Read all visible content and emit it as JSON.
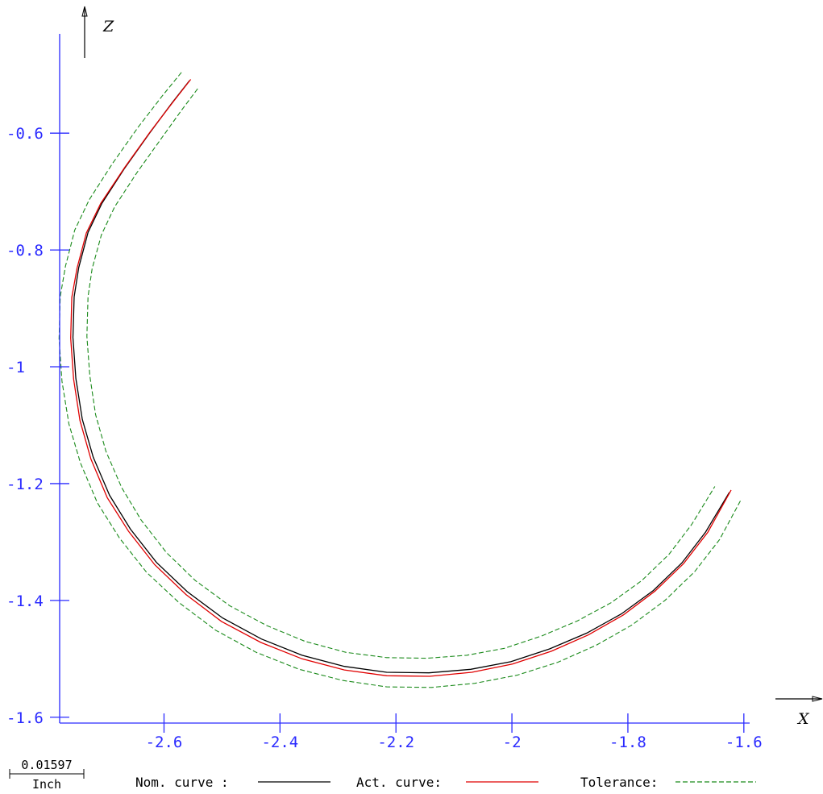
{
  "chart_data": {
    "type": "line",
    "xlabel": "X",
    "ylabel": "Z",
    "xlim": [
      -2.78,
      -1.59
    ],
    "ylim": [
      -1.61,
      -0.43
    ],
    "x_ticks": [
      -2.6,
      -2.4,
      -2.2,
      -2.0,
      -1.8,
      -1.6
    ],
    "x_tick_labels": [
      "-2.6",
      "-2.4",
      "-2.2",
      "-2",
      "-1.8",
      "-1.6"
    ],
    "y_ticks": [
      -0.6,
      -0.8,
      -1.0,
      -1.2,
      -1.4,
      -1.6
    ],
    "y_tick_labels": [
      "-0.6",
      "-0.8",
      "-1",
      "-1.2",
      "-1.4",
      "-1.6"
    ],
    "grid": false,
    "series": [
      {
        "name": "Nom. curve :",
        "color": "#000000",
        "style": "solid",
        "x": [
          -2.556,
          -2.586,
          -2.625,
          -2.668,
          -2.707,
          -2.731,
          -2.747,
          -2.755,
          -2.757,
          -2.752,
          -2.741,
          -2.722,
          -2.694,
          -2.658,
          -2.613,
          -2.56,
          -2.499,
          -2.432,
          -2.362,
          -2.289,
          -2.216,
          -2.143,
          -2.071,
          -2.002,
          -1.935,
          -1.871,
          -1.811,
          -1.756,
          -1.707,
          -1.666,
          -1.625
        ],
        "y": [
          -0.51,
          -0.548,
          -0.6,
          -0.66,
          -0.72,
          -0.77,
          -0.83,
          -0.88,
          -0.95,
          -1.02,
          -1.09,
          -1.155,
          -1.22,
          -1.278,
          -1.335,
          -1.385,
          -1.43,
          -1.466,
          -1.494,
          -1.513,
          -1.523,
          -1.524,
          -1.518,
          -1.505,
          -1.483,
          -1.456,
          -1.423,
          -1.383,
          -1.336,
          -1.283,
          -1.215
        ]
      },
      {
        "name": "Act. curve:",
        "color": "#e00000",
        "style": "solid",
        "x": [
          -2.554,
          -2.584,
          -2.624,
          -2.668,
          -2.709,
          -2.734,
          -2.75,
          -2.759,
          -2.761,
          -2.756,
          -2.745,
          -2.726,
          -2.698,
          -2.661,
          -2.616,
          -2.562,
          -2.501,
          -2.433,
          -2.362,
          -2.289,
          -2.216,
          -2.142,
          -2.069,
          -1.999,
          -1.932,
          -1.868,
          -1.808,
          -1.753,
          -1.704,
          -1.662,
          -1.622
        ],
        "y": [
          -0.508,
          -0.546,
          -0.598,
          -0.659,
          -0.72,
          -0.771,
          -0.831,
          -0.881,
          -0.951,
          -1.021,
          -1.092,
          -1.158,
          -1.224,
          -1.282,
          -1.339,
          -1.39,
          -1.436,
          -1.472,
          -1.5,
          -1.519,
          -1.529,
          -1.53,
          -1.523,
          -1.509,
          -1.487,
          -1.459,
          -1.425,
          -1.384,
          -1.337,
          -1.283,
          -1.211
        ]
      },
      {
        "name": "Tolerance:",
        "color": "#1a8a1a",
        "style": "dashed",
        "x": [
          -2.57,
          -2.602,
          -2.644,
          -2.689,
          -2.729,
          -2.754,
          -2.77,
          -2.779,
          -2.781,
          -2.776,
          -2.764,
          -2.744,
          -2.715,
          -2.677,
          -2.63,
          -2.574,
          -2.511,
          -2.441,
          -2.367,
          -2.292,
          -2.216,
          -2.139,
          -2.064,
          -1.991,
          -1.921,
          -1.855,
          -1.793,
          -1.736,
          -1.685,
          -1.642,
          -1.604
        ],
        "y": [
          -0.496,
          -0.535,
          -0.589,
          -0.652,
          -0.714,
          -0.766,
          -0.828,
          -0.88,
          -0.952,
          -1.025,
          -1.098,
          -1.165,
          -1.233,
          -1.293,
          -1.352,
          -1.404,
          -1.451,
          -1.489,
          -1.518,
          -1.537,
          -1.548,
          -1.549,
          -1.542,
          -1.528,
          -1.506,
          -1.477,
          -1.442,
          -1.4,
          -1.351,
          -1.296,
          -1.226
        ]
      },
      {
        "name": "Tolerance:",
        "color": "#1a8a1a",
        "style": "dashed",
        "x": [
          -2.542,
          -2.57,
          -2.606,
          -2.647,
          -2.685,
          -2.708,
          -2.724,
          -2.731,
          -2.733,
          -2.728,
          -2.718,
          -2.7,
          -2.673,
          -2.639,
          -2.596,
          -2.546,
          -2.487,
          -2.423,
          -2.357,
          -2.286,
          -2.216,
          -2.147,
          -2.078,
          -2.013,
          -1.949,
          -1.887,
          -1.829,
          -1.776,
          -1.729,
          -1.69,
          -1.65
        ],
        "y": [
          -0.524,
          -0.561,
          -0.611,
          -0.668,
          -0.726,
          -0.774,
          -0.832,
          -0.88,
          -0.948,
          -1.015,
          -1.082,
          -1.145,
          -1.207,
          -1.263,
          -1.318,
          -1.366,
          -1.409,
          -1.443,
          -1.47,
          -1.489,
          -1.498,
          -1.499,
          -1.494,
          -1.482,
          -1.461,
          -1.435,
          -1.404,
          -1.366,
          -1.321,
          -1.27,
          -1.205
        ]
      }
    ]
  },
  "axis_labels": {
    "x": "X",
    "z": "Z"
  },
  "scale_bar": {
    "value": "0.01597",
    "unit": "Inch"
  },
  "legend": [
    {
      "label": "Nom. curve :",
      "color": "#000000",
      "style": "solid"
    },
    {
      "label": "Act. curve:",
      "color": "#e00000",
      "style": "solid"
    },
    {
      "label": "Tolerance:",
      "color": "#1a8a1a",
      "style": "dashed"
    }
  ]
}
